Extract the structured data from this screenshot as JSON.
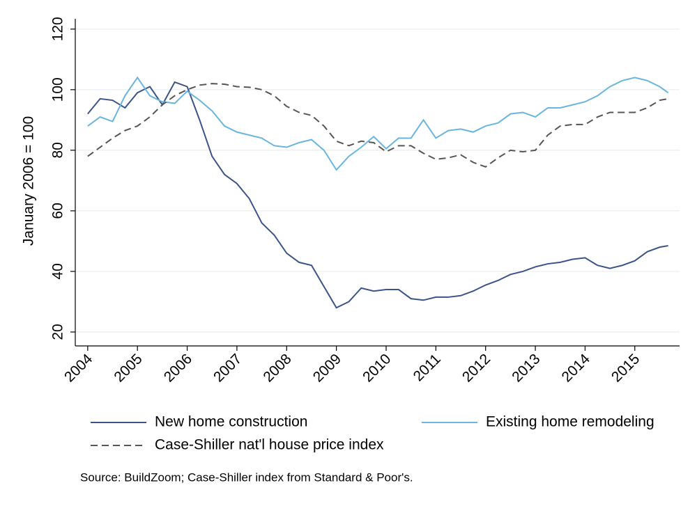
{
  "chart_data": {
    "type": "line",
    "y_label": "January 2006 = 100",
    "source": "Source: BuildZoom; Case-Shiller index from Standard & Poor's.",
    "x": [
      2004,
      2004.25,
      2004.5,
      2004.75,
      2005,
      2005.25,
      2005.5,
      2005.75,
      2006,
      2006.25,
      2006.5,
      2006.75,
      2007,
      2007.25,
      2007.5,
      2007.75,
      2008,
      2008.25,
      2008.5,
      2008.75,
      2009,
      2009.25,
      2009.5,
      2009.75,
      2010,
      2010.25,
      2010.5,
      2010.75,
      2011,
      2011.25,
      2011.5,
      2011.75,
      2012,
      2012.25,
      2012.5,
      2012.75,
      2013,
      2013.25,
      2013.5,
      2013.75,
      2014,
      2014.25,
      2014.5,
      2014.75,
      2015,
      2015.25,
      2015.5,
      2015.67
    ],
    "series": [
      {
        "name": "New home construction",
        "color": "#3b5388",
        "style": "solid",
        "values": [
          92,
          97,
          96.5,
          94,
          99,
          101,
          95,
          102.5,
          101,
          90,
          78,
          72,
          69,
          64,
          56,
          52,
          46,
          43,
          42,
          35,
          28,
          30,
          34.5,
          33.5,
          34,
          34,
          31,
          30.5,
          31.5,
          31.5,
          32,
          33.5,
          35.5,
          37,
          39,
          40,
          41.5,
          42.5,
          43,
          44,
          44.5,
          42,
          41,
          42,
          43.5,
          46.5,
          48,
          48.5
        ]
      },
      {
        "name": "Existing home remodeling",
        "color": "#68b5e0",
        "style": "solid",
        "values": [
          88,
          91,
          89.5,
          98,
          104,
          98,
          96,
          95.5,
          99.5,
          96.5,
          93,
          88,
          86,
          85,
          84,
          81.5,
          81,
          82.5,
          83.5,
          80,
          73.5,
          78,
          81,
          84.5,
          80.5,
          84,
          84,
          90,
          84,
          86.5,
          87,
          86,
          88,
          89,
          92,
          92.5,
          91,
          94,
          94,
          95,
          96,
          98,
          101,
          103,
          104,
          103,
          101,
          99
        ]
      },
      {
        "name": "Case-Shiller nat'l house price index",
        "color": "#555555",
        "style": "dashed",
        "values": [
          78,
          81,
          84,
          86.5,
          88,
          91,
          95,
          98,
          100,
          101.5,
          102,
          101.8,
          101,
          100.8,
          100,
          98,
          94.5,
          92.5,
          91.5,
          88,
          83,
          81.5,
          83,
          82.5,
          79.5,
          81.5,
          81.5,
          79,
          77,
          77.5,
          78.5,
          76,
          74.5,
          77.5,
          80,
          79.5,
          80,
          85,
          88,
          88.5,
          88.5,
          91,
          92.5,
          92.5,
          92.5,
          94,
          96.5,
          97
        ]
      }
    ],
    "xlim": [
      2003.75,
      2015.9
    ],
    "ylim": [
      15.4,
      123.4
    ],
    "xticks": [
      2004,
      2005,
      2006,
      2007,
      2008,
      2009,
      2010,
      2011,
      2012,
      2013,
      2014,
      2015
    ],
    "yticks": [
      20,
      40,
      60,
      80,
      100,
      120
    ],
    "grid": true
  }
}
